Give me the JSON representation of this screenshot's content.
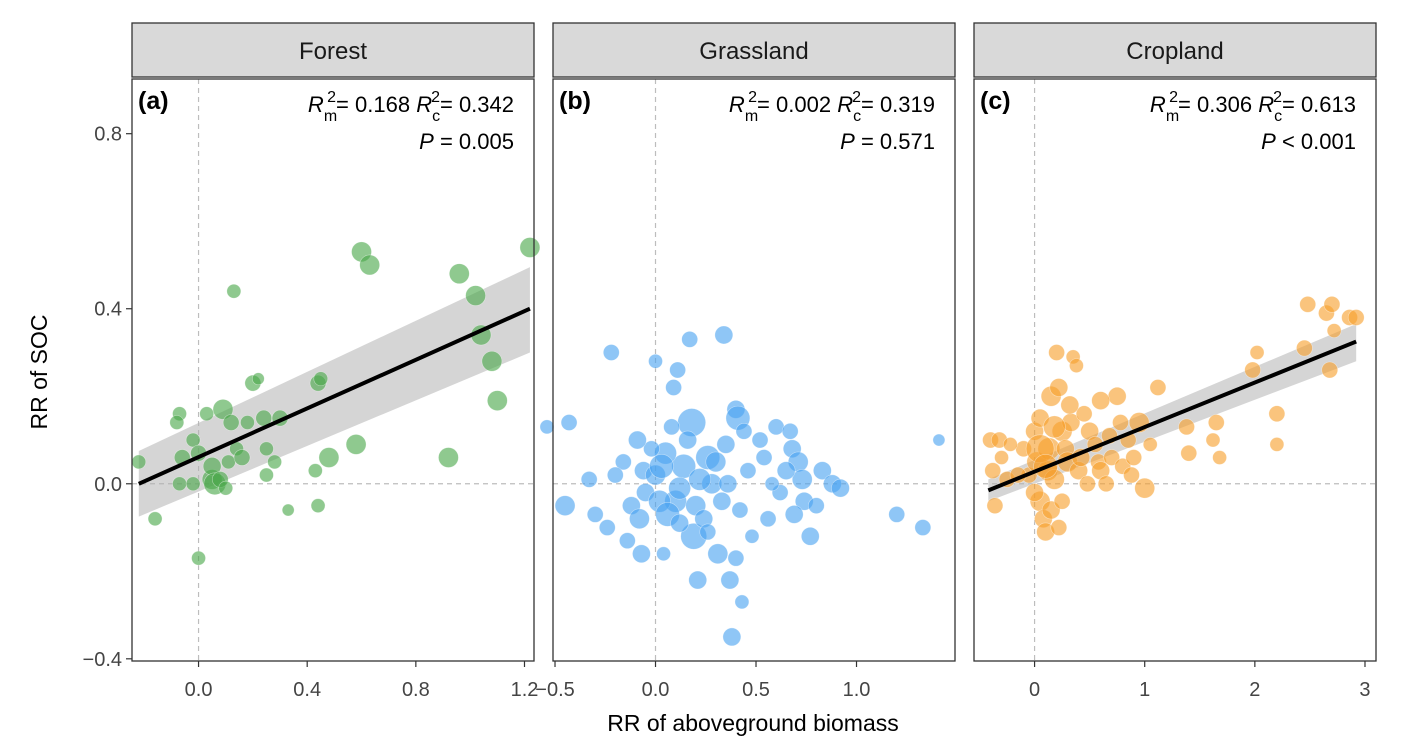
{
  "figure": {
    "ylabel": "RR of SOC",
    "xlabel": "RR of aboveground biomass",
    "y_ticks": [
      "0.8",
      "0.4",
      "0.0",
      "−0.4"
    ],
    "ylim": [
      -0.405,
      0.925
    ]
  },
  "chart_data": [
    {
      "type": "scatter",
      "strip_label": "Forest",
      "panel_label": "(a)",
      "stats": {
        "Rm2": "0.168",
        "Rc2": "0.342",
        "P_op": "=",
        "P": "0.005"
      },
      "color": "#4aa84a",
      "xlim": [
        -0.245,
        1.235
      ],
      "x_ticks": [
        0.0,
        0.4,
        0.8,
        1.2
      ],
      "x_tick_labels": [
        "0.0",
        "0.4",
        "0.8",
        "1.2"
      ],
      "fit": {
        "x": [
          -0.22,
          1.22
        ],
        "y": [
          0.0,
          0.4
        ],
        "ci_lo": [
          -0.075,
          0.3
        ],
        "ci_hi": [
          0.075,
          0.495
        ]
      },
      "points": [
        [
          -0.22,
          0.05,
          7
        ],
        [
          -0.16,
          -0.08,
          7
        ],
        [
          -0.07,
          0.16,
          7
        ],
        [
          -0.08,
          0.14,
          7
        ],
        [
          -0.06,
          0.06,
          8
        ],
        [
          -0.07,
          0.0,
          7
        ],
        [
          -0.02,
          0.0,
          7
        ],
        [
          -0.02,
          0.1,
          7
        ],
        [
          0.0,
          0.07,
          8
        ],
        [
          0.0,
          -0.17,
          7
        ],
        [
          0.03,
          0.16,
          7
        ],
        [
          0.05,
          0.01,
          10
        ],
        [
          0.05,
          0.04,
          9
        ],
        [
          0.06,
          0.0,
          11
        ],
        [
          0.08,
          0.01,
          8
        ],
        [
          0.09,
          0.17,
          10
        ],
        [
          0.1,
          -0.01,
          7
        ],
        [
          0.11,
          0.05,
          7
        ],
        [
          0.12,
          0.14,
          8
        ],
        [
          0.13,
          0.44,
          7
        ],
        [
          0.14,
          0.08,
          7
        ],
        [
          0.16,
          0.06,
          8
        ],
        [
          0.18,
          0.14,
          7
        ],
        [
          0.2,
          0.23,
          8
        ],
        [
          0.22,
          0.24,
          6
        ],
        [
          0.24,
          0.15,
          8
        ],
        [
          0.25,
          0.08,
          7
        ],
        [
          0.25,
          0.02,
          7
        ],
        [
          0.28,
          0.05,
          7
        ],
        [
          0.3,
          0.15,
          8
        ],
        [
          0.33,
          -0.06,
          6
        ],
        [
          0.43,
          0.03,
          7
        ],
        [
          0.44,
          -0.05,
          7
        ],
        [
          0.44,
          0.23,
          8
        ],
        [
          0.45,
          0.24,
          7
        ],
        [
          0.48,
          0.06,
          10
        ],
        [
          0.58,
          0.09,
          10
        ],
        [
          0.6,
          0.53,
          10
        ],
        [
          0.63,
          0.5,
          10
        ],
        [
          0.92,
          0.06,
          10
        ],
        [
          0.96,
          0.48,
          10
        ],
        [
          1.02,
          0.43,
          10
        ],
        [
          1.04,
          0.34,
          10
        ],
        [
          1.08,
          0.28,
          10
        ],
        [
          1.1,
          0.19,
          10
        ],
        [
          1.22,
          0.54,
          10
        ]
      ]
    },
    {
      "type": "scatter",
      "strip_label": "Grassland",
      "panel_label": "(b)",
      "stats": {
        "Rm2": "0.002",
        "Rc2": "0.319",
        "P_op": "=",
        "P": "0.571"
      },
      "color": "#4aa3f0",
      "xlim": [
        -0.51,
        1.49
      ],
      "x_ticks": [
        -0.5,
        0.0,
        0.5,
        1.0
      ],
      "x_tick_labels": [
        "−0.5",
        "0.0",
        "0.5",
        "1.0"
      ],
      "points": [
        [
          -0.43,
          0.14,
          8
        ],
        [
          -0.22,
          0.3,
          8
        ],
        [
          0.0,
          0.28,
          7
        ],
        [
          0.04,
          -0.16,
          7
        ],
        [
          0.09,
          0.22,
          8
        ],
        [
          0.11,
          0.26,
          8
        ],
        [
          0.17,
          0.33,
          8
        ],
        [
          0.34,
          0.34,
          9
        ],
        [
          0.4,
          0.17,
          9
        ],
        [
          0.41,
          0.15,
          12
        ],
        [
          0.18,
          0.14,
          14
        ],
        [
          0.26,
          0.06,
          12
        ],
        [
          0.14,
          0.04,
          12
        ],
        [
          0.05,
          0.07,
          11
        ],
        [
          -0.06,
          0.03,
          9
        ],
        [
          0.0,
          0.02,
          10
        ],
        [
          0.1,
          -0.04,
          11
        ],
        [
          0.19,
          -0.12,
          13
        ],
        [
          0.31,
          -0.16,
          10
        ],
        [
          0.37,
          -0.22,
          9
        ],
        [
          0.4,
          -0.17,
          8
        ],
        [
          0.43,
          -0.27,
          7
        ],
        [
          0.38,
          -0.35,
          9
        ],
        [
          0.21,
          -0.22,
          9
        ],
        [
          0.3,
          0.05,
          10
        ],
        [
          0.35,
          0.09,
          9
        ],
        [
          0.44,
          0.12,
          8
        ],
        [
          0.52,
          0.1,
          8
        ],
        [
          0.6,
          0.13,
          8
        ],
        [
          0.67,
          0.12,
          8
        ],
        [
          0.68,
          0.08,
          9
        ],
        [
          0.71,
          0.05,
          10
        ],
        [
          0.73,
          0.01,
          10
        ],
        [
          0.65,
          0.03,
          9
        ],
        [
          0.62,
          -0.02,
          8
        ],
        [
          0.74,
          -0.04,
          9
        ],
        [
          0.8,
          -0.05,
          8
        ],
        [
          0.83,
          0.03,
          9
        ],
        [
          0.88,
          0.0,
          9
        ],
        [
          0.92,
          -0.01,
          9
        ],
        [
          0.77,
          -0.12,
          9
        ],
        [
          0.69,
          -0.07,
          9
        ],
        [
          0.56,
          -0.08,
          8
        ],
        [
          0.48,
          -0.12,
          7
        ],
        [
          0.42,
          -0.06,
          8
        ],
        [
          1.2,
          -0.07,
          8
        ],
        [
          1.33,
          -0.1,
          8
        ],
        [
          1.41,
          0.1,
          6
        ],
        [
          -0.45,
          -0.05,
          10
        ],
        [
          -0.3,
          -0.07,
          8
        ],
        [
          -0.33,
          0.01,
          8
        ],
        [
          -0.24,
          -0.1,
          8
        ],
        [
          -0.12,
          -0.05,
          9
        ],
        [
          -0.08,
          -0.08,
          10
        ],
        [
          -0.07,
          -0.16,
          9
        ],
        [
          -0.14,
          -0.13,
          8
        ],
        [
          -0.05,
          -0.02,
          9
        ],
        [
          0.02,
          -0.04,
          11
        ],
        [
          0.06,
          -0.07,
          12
        ],
        [
          0.12,
          -0.01,
          11
        ],
        [
          0.2,
          -0.05,
          10
        ],
        [
          0.24,
          -0.08,
          9
        ],
        [
          0.28,
          0.0,
          10
        ],
        [
          0.33,
          -0.04,
          9
        ],
        [
          0.46,
          0.03,
          8
        ],
        [
          0.54,
          0.06,
          8
        ],
        [
          0.58,
          0.0,
          7
        ],
        [
          0.16,
          0.1,
          9
        ],
        [
          0.08,
          0.13,
          8
        ],
        [
          -0.02,
          0.08,
          8
        ],
        [
          -0.09,
          0.1,
          9
        ],
        [
          -0.16,
          0.05,
          8
        ],
        [
          0.22,
          0.01,
          11
        ],
        [
          0.03,
          0.04,
          12
        ],
        [
          -0.2,
          0.02,
          8
        ],
        [
          0.36,
          0.0,
          9
        ],
        [
          0.12,
          -0.09,
          9
        ],
        [
          0.26,
          -0.11,
          8
        ],
        [
          -0.54,
          0.13,
          7
        ]
      ]
    },
    {
      "type": "scatter",
      "strip_label": "Cropland",
      "panel_label": "(c)",
      "stats": {
        "Rm2": "0.306",
        "Rc2": "0.613",
        "P_op": "<",
        "P": "0.001"
      },
      "color": "#f7a02d",
      "xlim": [
        -0.55,
        3.1
      ],
      "x_ticks": [
        0,
        1,
        2,
        3
      ],
      "x_tick_labels": [
        "0",
        "1",
        "2",
        "3"
      ],
      "fit": {
        "x": [
          -0.42,
          2.92
        ],
        "y": [
          -0.015,
          0.325
        ],
        "ci_lo": [
          -0.04,
          0.28
        ],
        "ci_hi": [
          0.01,
          0.365
        ]
      },
      "points": [
        [
          -0.4,
          0.1,
          8
        ],
        [
          -0.32,
          0.1,
          8
        ],
        [
          -0.38,
          0.03,
          8
        ],
        [
          -0.3,
          0.06,
          7
        ],
        [
          -0.36,
          -0.05,
          8
        ],
        [
          -0.25,
          0.01,
          8
        ],
        [
          -0.1,
          0.08,
          8
        ],
        [
          -0.05,
          0.02,
          8
        ],
        [
          0.0,
          0.12,
          9
        ],
        [
          0.02,
          0.05,
          10
        ],
        [
          0.05,
          0.15,
          9
        ],
        [
          0.05,
          -0.04,
          10
        ],
        [
          0.08,
          -0.08,
          9
        ],
        [
          0.1,
          -0.11,
          9
        ],
        [
          0.12,
          0.03,
          10
        ],
        [
          0.13,
          0.08,
          11
        ],
        [
          0.15,
          0.2,
          10
        ],
        [
          0.15,
          -0.06,
          9
        ],
        [
          0.18,
          0.01,
          10
        ],
        [
          0.2,
          0.3,
          8
        ],
        [
          0.22,
          0.22,
          9
        ],
        [
          0.22,
          -0.1,
          8
        ],
        [
          0.25,
          0.12,
          10
        ],
        [
          0.28,
          0.08,
          9
        ],
        [
          0.3,
          0.05,
          10
        ],
        [
          0.33,
          0.14,
          9
        ],
        [
          0.35,
          0.29,
          7
        ],
        [
          0.38,
          0.27,
          7
        ],
        [
          0.4,
          0.03,
          9
        ],
        [
          0.42,
          0.06,
          9
        ],
        [
          0.45,
          0.16,
          8
        ],
        [
          0.48,
          0.0,
          8
        ],
        [
          0.5,
          0.12,
          9
        ],
        [
          0.55,
          0.09,
          8
        ],
        [
          0.58,
          0.05,
          8
        ],
        [
          0.6,
          0.03,
          9
        ],
        [
          0.65,
          0.0,
          8
        ],
        [
          0.68,
          0.11,
          8
        ],
        [
          0.7,
          0.06,
          8
        ],
        [
          0.75,
          0.2,
          9
        ],
        [
          0.78,
          0.14,
          8
        ],
        [
          0.8,
          0.04,
          8
        ],
        [
          0.85,
          0.1,
          8
        ],
        [
          0.88,
          0.02,
          8
        ],
        [
          0.9,
          0.06,
          8
        ],
        [
          0.95,
          0.14,
          10
        ],
        [
          1.0,
          -0.01,
          10
        ],
        [
          1.05,
          0.09,
          7
        ],
        [
          1.12,
          0.22,
          8
        ],
        [
          1.4,
          0.07,
          8
        ],
        [
          1.38,
          0.13,
          8
        ],
        [
          1.62,
          0.1,
          7
        ],
        [
          1.65,
          0.14,
          8
        ],
        [
          1.68,
          0.06,
          7
        ],
        [
          1.98,
          0.26,
          8
        ],
        [
          2.02,
          0.3,
          7
        ],
        [
          2.2,
          0.16,
          8
        ],
        [
          2.2,
          0.09,
          7
        ],
        [
          2.45,
          0.31,
          8
        ],
        [
          2.48,
          0.41,
          8
        ],
        [
          2.65,
          0.39,
          8
        ],
        [
          2.7,
          0.41,
          8
        ],
        [
          2.72,
          0.35,
          7
        ],
        [
          2.86,
          0.38,
          8
        ],
        [
          2.92,
          0.38,
          8
        ],
        [
          2.68,
          0.26,
          8
        ],
        [
          0.05,
          0.08,
          14
        ],
        [
          0.1,
          0.04,
          12
        ],
        [
          0.18,
          0.13,
          11
        ],
        [
          0.0,
          -0.02,
          9
        ],
        [
          -0.15,
          0.02,
          8
        ],
        [
          -0.22,
          0.09,
          7
        ],
        [
          0.25,
          -0.04,
          8
        ],
        [
          0.6,
          0.19,
          9
        ],
        [
          0.32,
          0.18,
          9
        ]
      ]
    }
  ]
}
